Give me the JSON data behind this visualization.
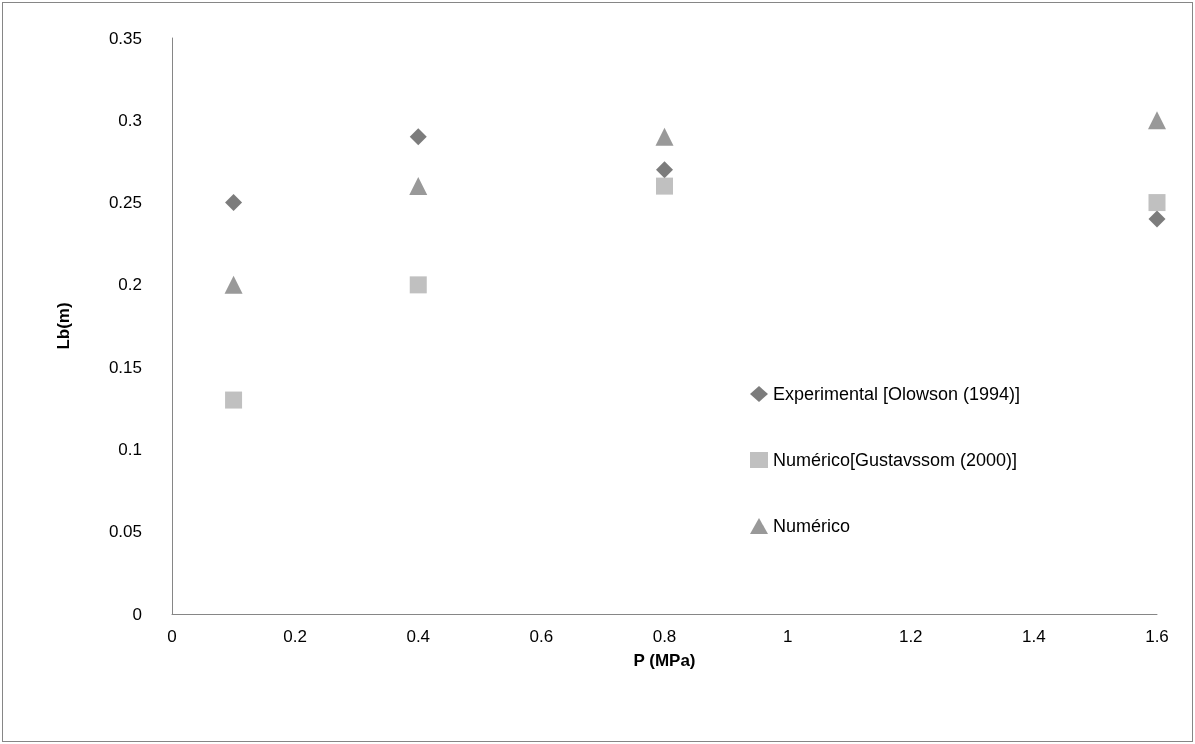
{
  "chart_data": {
    "type": "scatter",
    "xlabel": "P (MPa)",
    "ylabel": "Lb(m)",
    "x": [
      0.1,
      0.4,
      0.8,
      1.6
    ],
    "series": [
      {
        "name": "Experimental [Olowson (1994)]",
        "color": "#5b5b5b",
        "marker": "diamond",
        "values": [
          0.25,
          0.29,
          0.27,
          0.24
        ]
      },
      {
        "name": "Numérico[Gustavssom (2000)]",
        "color": "#b0b0b0",
        "marker": "square",
        "values": [
          0.13,
          0.2,
          0.26,
          0.25
        ]
      },
      {
        "name": "Numérico",
        "color": "#808080",
        "marker": "triangle",
        "values": [
          0.2,
          0.26,
          0.29,
          0.3
        ]
      }
    ],
    "xlim": [
      0,
      1.6
    ],
    "xticks": [
      0,
      0.2,
      0.4,
      0.6,
      0.8,
      1,
      1.2,
      1.4,
      1.6
    ],
    "ylim": [
      0,
      0.35
    ],
    "yticks": [
      0,
      0.05,
      0.1,
      0.15,
      0.2,
      0.25,
      0.3,
      0.35
    ],
    "grid": false,
    "legend": "right"
  }
}
